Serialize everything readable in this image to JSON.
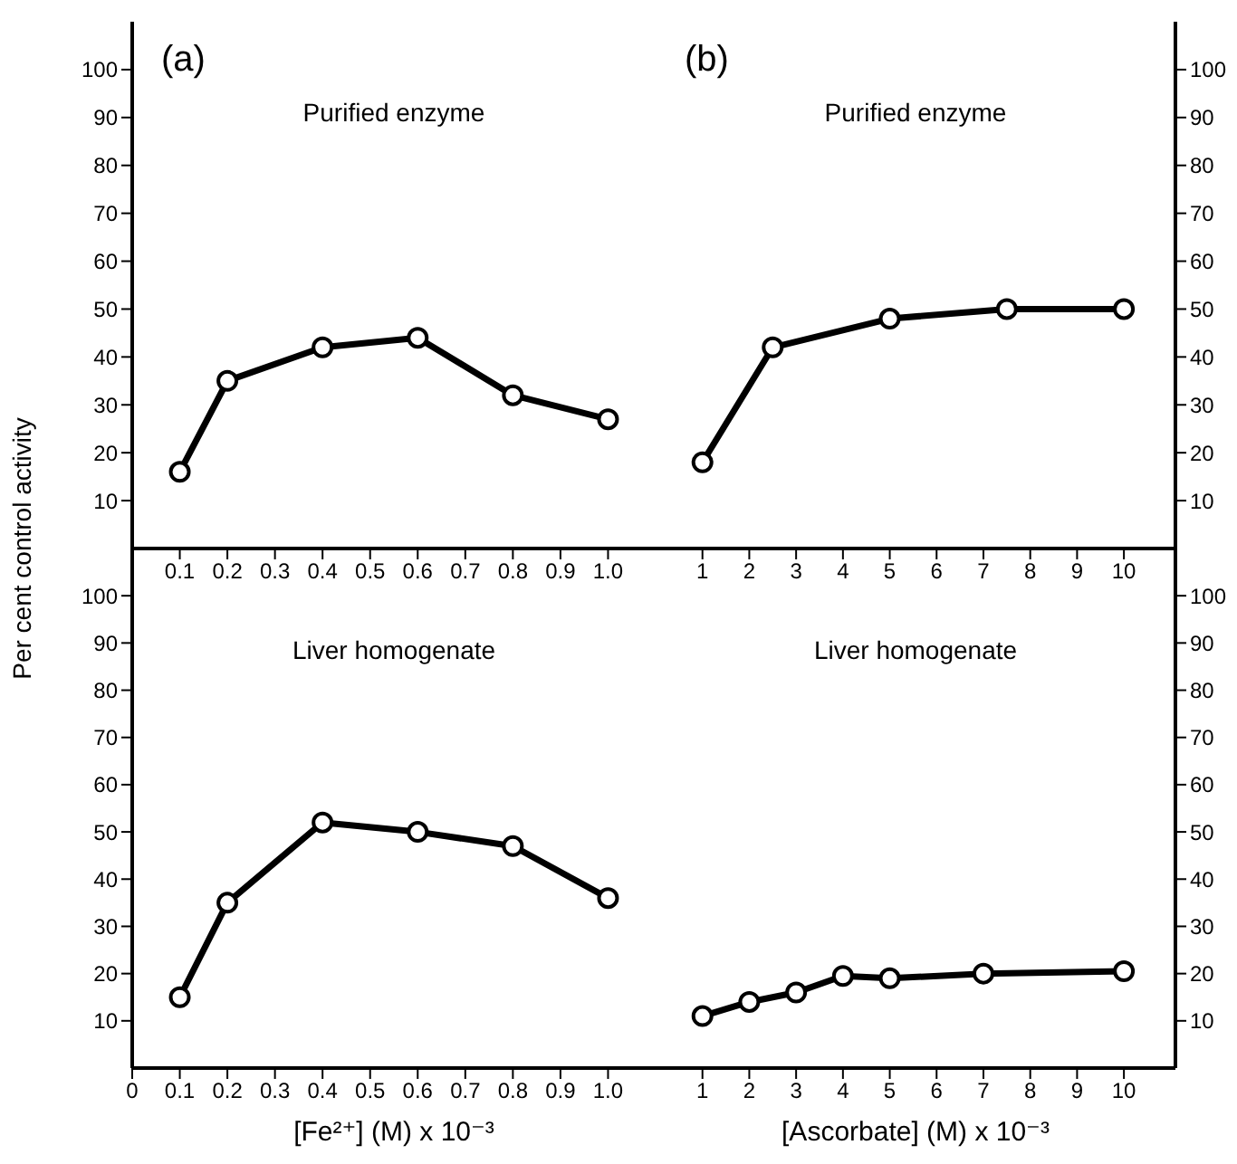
{
  "chart_data": [
    {
      "type": "line",
      "title": "(a)",
      "subtitle": "Purified enzyme",
      "ylabel": "Per cent control activity",
      "x": [
        0.1,
        0.2,
        0.4,
        0.6,
        0.8,
        1.0
      ],
      "series": [
        {
          "color": "#000000",
          "values": [
            16,
            35,
            42,
            44,
            32,
            27
          ]
        }
      ],
      "xlim": [
        0,
        1.1
      ],
      "xticks": [
        0.1,
        0.2,
        0.3,
        0.4,
        0.5,
        0.6,
        0.7,
        0.8,
        0.9,
        {
          "value": 1,
          "label": "1.0"
        }
      ],
      "ylim": [
        0,
        110
      ],
      "yticks": [
        10,
        20,
        30,
        40,
        50,
        60,
        70,
        80,
        90,
        100
      ],
      "marker": "circle",
      "line_style": "solid"
    },
    {
      "type": "line",
      "title": "(b)",
      "subtitle": "Purified enzyme",
      "x": [
        1,
        2.5,
        5,
        7.5,
        10
      ],
      "series": [
        {
          "color": "#000000",
          "values": [
            18,
            42,
            48,
            50,
            50
          ]
        }
      ],
      "xlim": [
        0,
        11.1
      ],
      "xticks": [
        1,
        2,
        3,
        4,
        5,
        6,
        7,
        8,
        9,
        10
      ],
      "ylim": [
        0,
        110
      ],
      "yticks": [
        10,
        20,
        30,
        40,
        50,
        60,
        70,
        80,
        90,
        100
      ],
      "marker": "circle",
      "line_style": "solid"
    },
    {
      "type": "line",
      "title": "Liver homogenate",
      "xlabel": "[Fe²⁺] (M) x 10⁻³",
      "x": [
        0.1,
        0.2,
        0.4,
        0.6,
        0.8,
        1.0
      ],
      "series": [
        {
          "color": "#000000",
          "values": [
            15,
            35,
            52,
            50,
            47,
            36
          ]
        }
      ],
      "xlim": [
        0,
        1.1
      ],
      "xticks": [
        0,
        0.1,
        0.2,
        0.3,
        0.4,
        0.5,
        0.6,
        0.7,
        0.8,
        0.9,
        {
          "value": 1,
          "label": "1.0"
        }
      ],
      "ylim": [
        0,
        110
      ],
      "yticks": [
        10,
        20,
        30,
        40,
        50,
        60,
        70,
        80,
        90,
        100
      ],
      "marker": "circle",
      "line_style": "solid"
    },
    {
      "type": "line",
      "title": "Liver homogenate",
      "xlabel": "[Ascorbate] (M) x 10⁻³",
      "x": [
        1,
        2,
        3,
        4,
        5,
        7,
        10
      ],
      "series": [
        {
          "color": "#000000",
          "values": [
            11,
            14,
            16,
            19.5,
            19,
            20,
            20.5
          ]
        }
      ],
      "xlim": [
        0,
        11.1
      ],
      "xticks": [
        1,
        2,
        3,
        4,
        5,
        6,
        7,
        8,
        9,
        10
      ],
      "ylim": [
        0,
        110
      ],
      "yticks": [
        10,
        20,
        30,
        40,
        50,
        60,
        70,
        80,
        90,
        100
      ],
      "marker": "circle",
      "line_style": "solid"
    }
  ]
}
